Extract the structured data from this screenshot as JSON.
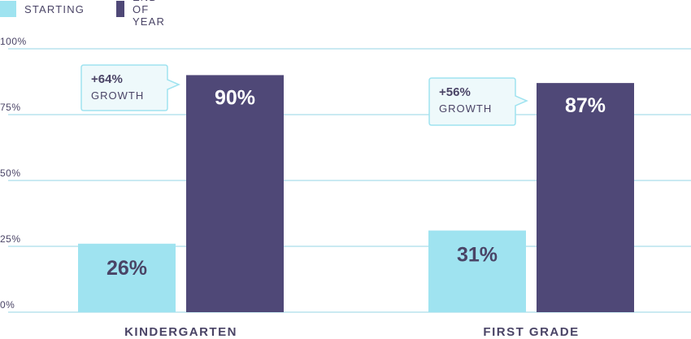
{
  "legend": {
    "items": [
      {
        "label": "STARTING",
        "color": "#9fe3f0"
      },
      {
        "label": "END OF YEAR",
        "color": "#4f4877"
      }
    ]
  },
  "chart_data": {
    "type": "bar",
    "categories": [
      "KINDERGARTEN",
      "FIRST GRADE"
    ],
    "series": [
      {
        "name": "STARTING",
        "values": [
          26,
          31
        ],
        "labels": [
          "26%",
          "31%"
        ],
        "color": "#9fe3f0"
      },
      {
        "name": "END OF YEAR",
        "values": [
          90,
          87
        ],
        "labels": [
          "90%",
          "87%"
        ],
        "color": "#4f4877"
      }
    ],
    "ylim": [
      0,
      100
    ],
    "yticks": [
      0,
      25,
      50,
      75,
      100
    ],
    "ytick_labels": [
      "0%",
      "25%",
      "50%",
      "75%",
      "100%"
    ],
    "grid": true,
    "legend_position": "top-left",
    "annotations": [
      {
        "category": "KINDERGARTEN",
        "line1": "+64%",
        "line2": "GROWTH"
      },
      {
        "category": "FIRST GRADE",
        "line1": "+56%",
        "line2": "GROWTH"
      }
    ]
  }
}
